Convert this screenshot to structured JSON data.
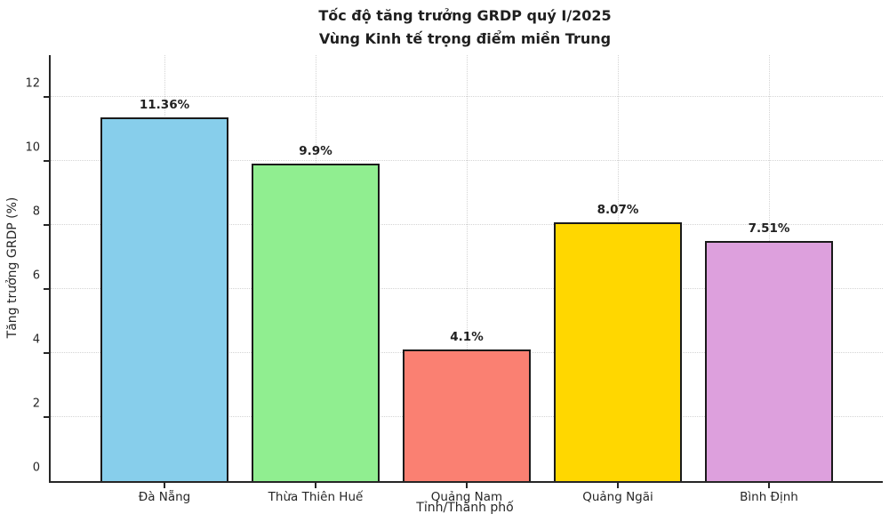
{
  "title": {
    "line1": "Tốc độ tăng trưởng GRDP quý I/2025",
    "line2": "Vùng Kinh tế trọng điểm miền Trung"
  },
  "chart_data": {
    "type": "bar",
    "title": "Tốc độ tăng trưởng GRDP quý I/2025 — Vùng Kinh tế trọng điểm miền Trung",
    "categories": [
      "Đà Nẵng",
      "Thừa Thiên Huế",
      "Quảng Nam",
      "Quảng Ngãi",
      "Bình Định"
    ],
    "values": [
      11.36,
      9.9,
      4.1,
      8.07,
      7.51
    ],
    "value_labels": [
      "11.36%",
      "9.9%",
      "4.1%",
      "8.07%",
      "7.51%"
    ],
    "bar_colors": [
      "#87CEEB",
      "#90EE90",
      "#FA8072",
      "#FFD700",
      "#DDA0DD"
    ],
    "bar_edge_color": "#1a1a1a",
    "xlabel": "Tỉnh/Thành phố",
    "ylabel": "Tăng trưởng GRDP (%)",
    "yticks": [
      0,
      2,
      4,
      6,
      8,
      10,
      12
    ],
    "ylim": [
      0,
      13.3
    ],
    "grid": "dotted",
    "grid_color": "#d4d4d4",
    "legend": "none"
  }
}
